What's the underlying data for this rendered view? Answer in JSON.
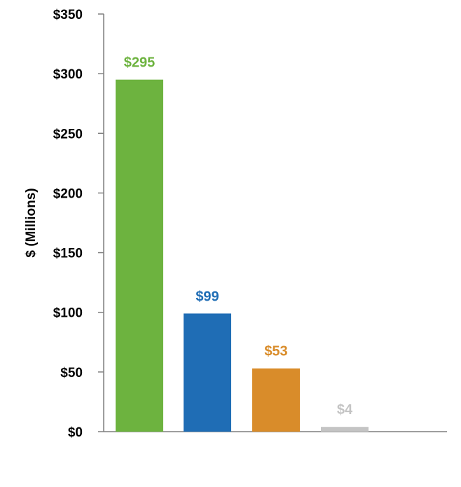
{
  "chart_data": {
    "type": "bar",
    "title": "",
    "xlabel": "",
    "ylabel": "$ (Millions)",
    "ylim": [
      0,
      350
    ],
    "y_ticks": [
      0,
      50,
      100,
      150,
      200,
      250,
      300,
      350
    ],
    "y_tick_labels": [
      "$0",
      "$50",
      "$100",
      "$150",
      "$200",
      "$250",
      "$300",
      "$350"
    ],
    "categories": [
      "",
      "",
      "",
      ""
    ],
    "values": [
      295,
      99,
      53,
      4
    ],
    "value_labels": [
      "$295",
      "$99",
      "$53",
      "$4"
    ],
    "colors": [
      "#6db33f",
      "#1f6db5",
      "#d98c2a",
      "#c4c4c4"
    ],
    "label_colors": [
      "#6db33f",
      "#1f6db5",
      "#d98c2a",
      "#c4c4c4"
    ],
    "grid": false,
    "legend": "none"
  }
}
